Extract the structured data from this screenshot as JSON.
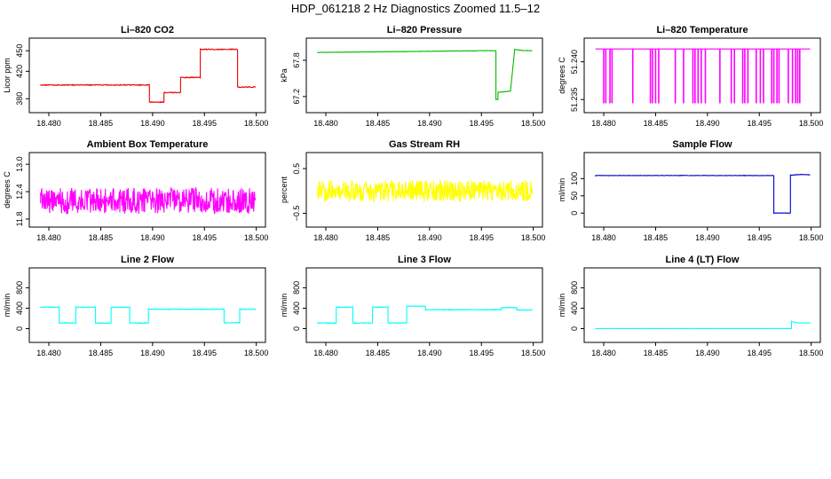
{
  "suptitle": "HDP_061218  2 Hz Diagnostics Zoomed 11.5–12",
  "chart_data": [
    {
      "type": "line",
      "title": "Li–820 CO2",
      "xlabel": "",
      "ylabel": "Licor ppm",
      "xlim": [
        18.4788,
        18.5002
      ],
      "ylim": [
        370,
        458
      ],
      "xticks": [
        18.48,
        18.485,
        18.49,
        18.495,
        18.5
      ],
      "xtick_labels": [
        "18.480",
        "18.485",
        "18.490",
        "18.495",
        "18.500"
      ],
      "yticks": [
        380,
        420,
        450
      ],
      "ytick_labels": [
        "380",
        "420",
        "450"
      ],
      "color": "#ee0000",
      "noise": 0.6,
      "series": [
        {
          "x": [
            18.4792,
            18.4897,
            18.4897,
            18.4911,
            18.4911,
            18.4927,
            18.4927,
            18.4946,
            18.4946,
            18.4982,
            18.4982,
            18.4999
          ],
          "y": [
            400,
            400,
            375,
            375,
            389,
            389,
            411,
            411,
            452,
            452,
            397,
            397
          ]
        }
      ]
    },
    {
      "type": "line",
      "title": "Li–820 Pressure",
      "xlabel": "",
      "ylabel": "kPa",
      "xlim": [
        18.4788,
        18.5002
      ],
      "ylim": [
        67.05,
        68.05
      ],
      "xticks": [
        18.48,
        18.485,
        18.49,
        18.495,
        18.5
      ],
      "xtick_labels": [
        "18.480",
        "18.485",
        "18.490",
        "18.495",
        "18.500"
      ],
      "yticks": [
        67.2,
        67.8
      ],
      "ytick_labels": [
        "67.2",
        "67.8"
      ],
      "color": "#00bb00",
      "noise": 0.003,
      "series": [
        {
          "x": [
            18.4792,
            18.4955,
            18.4955,
            18.4964,
            18.4964,
            18.4966,
            18.4966,
            18.4978,
            18.4978,
            18.4982,
            18.4982,
            18.4991,
            18.4999
          ],
          "y": [
            67.93,
            67.96,
            67.96,
            67.96,
            67.15,
            67.15,
            67.27,
            67.29,
            67.29,
            67.96,
            67.98,
            67.96,
            67.96
          ]
        }
      ]
    },
    {
      "type": "line",
      "title": "Li–820 Temperature",
      "xlabel": "",
      "ylabel": "degrees C",
      "xlim": [
        18.4788,
        18.5002
      ],
      "ylim": [
        51.2342,
        51.2422
      ],
      "xticks": [
        18.48,
        18.485,
        18.49,
        18.495,
        18.5
      ],
      "xtick_labels": [
        "18.480",
        "18.485",
        "18.490",
        "18.495",
        "18.500"
      ],
      "yticks": [
        51.235,
        51.24
      ],
      "ytick_labels": [
        "51.235",
        "51.240"
      ],
      "color": "#ff00ff",
      "noise": 0,
      "series": [
        {
          "x": [
            18.4792,
            18.4999
          ],
          "y": [
            51.2417,
            51.2417
          ]
        }
      ],
      "drops": [
        18.48,
        18.4802,
        18.4806,
        18.4808,
        18.4828,
        18.4845,
        18.4847,
        18.485,
        18.4853,
        18.4869,
        18.4877,
        18.4886,
        18.4888,
        18.4891,
        18.4894,
        18.4898,
        18.4912,
        18.4923,
        18.4926,
        18.4934,
        18.4936,
        18.4939,
        18.4947,
        18.4951,
        18.4954,
        18.4962,
        18.4964,
        18.4967,
        18.4969,
        18.4978,
        18.4982,
        18.4985,
        18.4987,
        18.4989
      ],
      "drop_to": 51.2345
    },
    {
      "type": "line",
      "title": "Ambient Box Temperature",
      "xlabel": "",
      "ylabel": "degrees C",
      "xlim": [
        18.4788,
        18.5002
      ],
      "ylim": [
        11.78,
        13.1
      ],
      "xticks": [
        18.48,
        18.485,
        18.49,
        18.495,
        18.5
      ],
      "xtick_labels": [
        "18.480",
        "18.485",
        "18.490",
        "18.495",
        "18.500"
      ],
      "yticks": [
        11.8,
        12.4,
        13.0
      ],
      "ytick_labels": [
        "11.8",
        "12.4",
        "13.0"
      ],
      "color": "#ff00ff",
      "noise": 0.28,
      "series": [
        {
          "x": [
            18.4792,
            18.4999
          ],
          "y": [
            12.2,
            12.2
          ]
        }
      ]
    },
    {
      "type": "line",
      "title": "Gas Stream RH",
      "xlabel": "",
      "ylabel": "percent",
      "xlim": [
        18.4788,
        18.5002
      ],
      "ylim": [
        -0.65,
        0.7
      ],
      "xticks": [
        18.48,
        18.485,
        18.49,
        18.495,
        18.5
      ],
      "xtick_labels": [
        "18.480",
        "18.485",
        "18.490",
        "18.495",
        "18.500"
      ],
      "yticks": [
        -0.5,
        0.5
      ],
      "ytick_labels": [
        "−0.5",
        "0.5"
      ],
      "color": "#ffff00",
      "noise": 0.24,
      "series": [
        {
          "x": [
            18.4792,
            18.4999
          ],
          "y": [
            0.0,
            0.0
          ]
        }
      ]
    },
    {
      "type": "line",
      "title": "Sample Flow",
      "xlabel": "",
      "ylabel": "ml/min",
      "xlim": [
        18.4788,
        18.5002
      ],
      "ylim": [
        -20,
        155
      ],
      "xticks": [
        18.48,
        18.485,
        18.49,
        18.495,
        18.5
      ],
      "xtick_labels": [
        "18.480",
        "18.485",
        "18.490",
        "18.495",
        "18.500"
      ],
      "yticks": [
        0,
        50,
        100
      ],
      "ytick_labels": [
        "0",
        "50",
        "100"
      ],
      "color": "#0000cc",
      "noise": 0.6,
      "series": [
        {
          "x": [
            18.4792,
            18.4964,
            18.4964,
            18.498,
            18.498,
            18.499,
            18.4999
          ],
          "y": [
            109,
            109,
            0,
            0,
            110,
            112,
            111
          ]
        }
      ]
    },
    {
      "type": "line",
      "title": "Line 2 Flow",
      "xlabel": "",
      "ylabel": "ml/min",
      "xlim": [
        18.4788,
        18.5002
      ],
      "ylim": [
        -130,
        1050
      ],
      "xticks": [
        18.48,
        18.485,
        18.49,
        18.495,
        18.5
      ],
      "xtick_labels": [
        "18.480",
        "18.485",
        "18.490",
        "18.495",
        "18.500"
      ],
      "yticks": [
        0,
        400,
        800
      ],
      "ytick_labels": [
        "0",
        "400",
        "800"
      ],
      "color": "#00ffff",
      "noise": 6,
      "series": [
        {
          "x": [
            18.4792,
            18.481,
            18.481,
            18.4826,
            18.4826,
            18.4845,
            18.4845,
            18.486,
            18.486,
            18.4878,
            18.4878,
            18.4896,
            18.4896,
            18.4969,
            18.4969,
            18.4984,
            18.4984,
            18.4999
          ],
          "y": [
            420,
            420,
            110,
            110,
            420,
            420,
            110,
            110,
            420,
            420,
            110,
            110,
            380,
            380,
            115,
            115,
            380,
            380
          ]
        }
      ]
    },
    {
      "type": "line",
      "title": "Line 3 Flow",
      "xlabel": "",
      "ylabel": "ml/min",
      "xlim": [
        18.4788,
        18.5002
      ],
      "ylim": [
        -130,
        1050
      ],
      "xticks": [
        18.48,
        18.485,
        18.49,
        18.495,
        18.5
      ],
      "xtick_labels": [
        "18.480",
        "18.485",
        "18.490",
        "18.495",
        "18.500"
      ],
      "yticks": [
        0,
        400,
        800
      ],
      "ytick_labels": [
        "0",
        "400",
        "800"
      ],
      "color": "#00ffff",
      "noise": 6,
      "series": [
        {
          "x": [
            18.4792,
            18.481,
            18.481,
            18.4826,
            18.4826,
            18.4845,
            18.4845,
            18.486,
            18.486,
            18.4878,
            18.4878,
            18.4896,
            18.4896,
            18.4969,
            18.4969,
            18.4984,
            18.4984,
            18.4999
          ],
          "y": [
            110,
            110,
            420,
            420,
            110,
            110,
            420,
            420,
            110,
            110,
            440,
            440,
            370,
            370,
            410,
            410,
            365,
            365
          ]
        }
      ]
    },
    {
      "type": "line",
      "title": "Line 4 (LT) Flow",
      "xlabel": "",
      "ylabel": "ml/min",
      "xlim": [
        18.4788,
        18.5002
      ],
      "ylim": [
        -130,
        1050
      ],
      "xticks": [
        18.48,
        18.485,
        18.49,
        18.495,
        18.5
      ],
      "xtick_labels": [
        "18.480",
        "18.485",
        "18.490",
        "18.495",
        "18.500"
      ],
      "yticks": [
        0,
        400,
        800
      ],
      "ytick_labels": [
        "0",
        "400",
        "800"
      ],
      "color": "#00ffff",
      "noise": 1.5,
      "series": [
        {
          "x": [
            18.4792,
            18.4981,
            18.4981,
            18.4988,
            18.4999
          ],
          "y": [
            2,
            2,
            140,
            110,
            110
          ]
        }
      ]
    }
  ]
}
